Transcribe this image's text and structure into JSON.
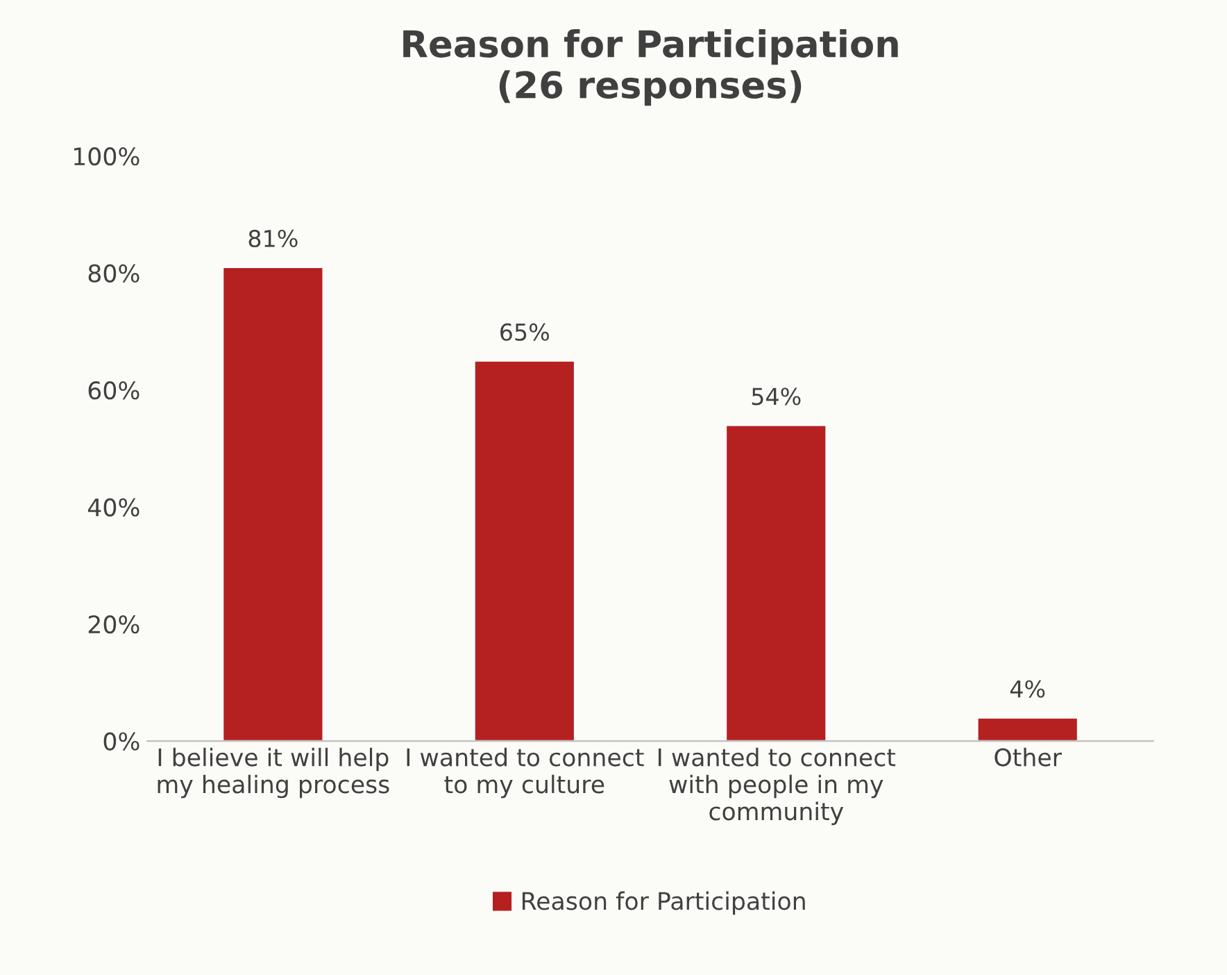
{
  "chart_data": {
    "type": "bar",
    "title": "Reason for Participation\n(26 responses)",
    "categories": [
      "I believe it will help\nmy healing process",
      "I wanted to connect\nto my culture",
      "I wanted to connect\nwith people in my\ncommunity",
      "Other"
    ],
    "series": [
      {
        "name": "Reason for Participation",
        "color": "#b52020",
        "values": [
          81,
          65,
          54,
          4
        ],
        "value_labels": [
          "81%",
          "65%",
          "54%",
          "4%"
        ]
      }
    ],
    "ylim": [
      0,
      100
    ],
    "yticks": [
      {
        "value": 0,
        "label": "0%"
      },
      {
        "value": 20,
        "label": "20%"
      },
      {
        "value": 40,
        "label": "40%"
      },
      {
        "value": 60,
        "label": "60%"
      },
      {
        "value": 80,
        "label": "80%"
      },
      {
        "value": 100,
        "label": "100%"
      }
    ],
    "grid": false,
    "legend": "bottom"
  }
}
